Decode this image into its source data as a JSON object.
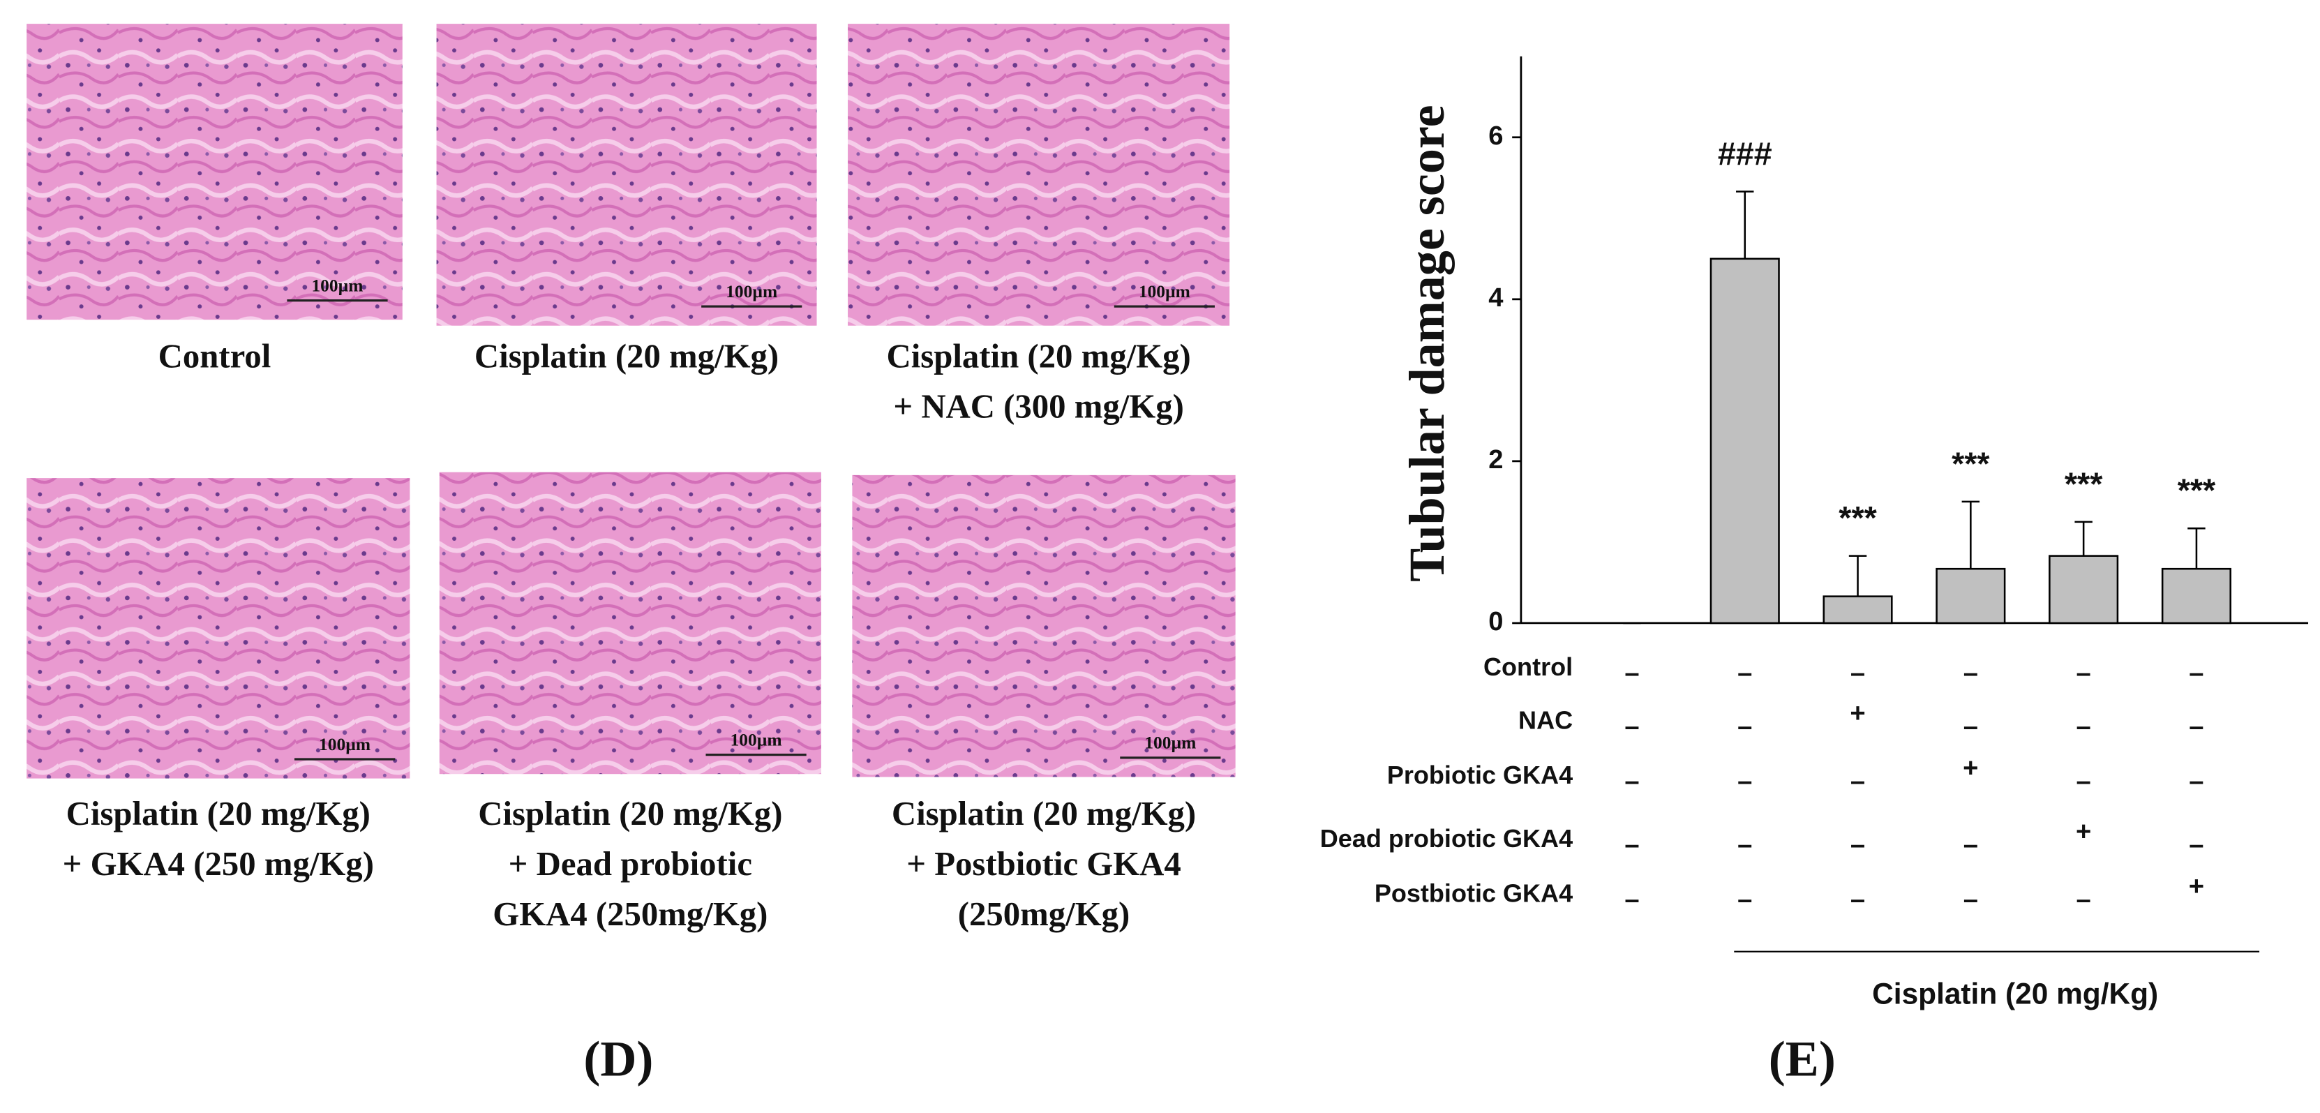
{
  "panel_d": {
    "label": "(D)",
    "images": [
      {
        "caption": [
          "Control"
        ],
        "scale_label": "100µm"
      },
      {
        "caption": [
          "Cisplatin (20 mg/Kg)"
        ],
        "scale_label": "100µm"
      },
      {
        "caption": [
          "Cisplatin (20 mg/Kg)",
          "+ NAC (300 mg/Kg)"
        ],
        "scale_label": "100µm"
      },
      {
        "caption": [
          "Cisplatin (20 mg/Kg)",
          "+ GKA4 (250 mg/Kg)"
        ],
        "scale_label": "100µm"
      },
      {
        "caption": [
          "Cisplatin (20 mg/Kg)",
          "+ Dead probiotic",
          "GKA4 (250mg/Kg)"
        ],
        "scale_label": "100µm"
      },
      {
        "caption": [
          "Cisplatin (20 mg/Kg)",
          "+ Postbiotic GKA4",
          "(250mg/Kg)"
        ],
        "scale_label": "100µm"
      }
    ]
  },
  "chart_data": {
    "type": "bar",
    "panel_label": "(E)",
    "y_label": "Tubular damage score",
    "values": [
      0,
      4.5,
      0.33,
      0.67,
      0.83,
      0.67
    ],
    "errors": [
      0,
      0.83,
      0.5,
      0.83,
      0.42,
      0.5
    ],
    "annotations": [
      null,
      "###",
      "***",
      "***",
      "***",
      "***"
    ],
    "color": "#c0c0c0",
    "ylim": [
      0,
      7
    ],
    "yticks": [
      0,
      2,
      4,
      6
    ],
    "treatments": [
      {
        "name": "Control",
        "signs": [
          "–",
          "–",
          "–",
          "–",
          "–",
          "–"
        ]
      },
      {
        "name": "NAC",
        "signs": [
          "–",
          "–",
          "+",
          "–",
          "–",
          "–"
        ]
      },
      {
        "name": "Probiotic GKA4",
        "signs": [
          "–",
          "–",
          "–",
          "+",
          "–",
          "–"
        ]
      },
      {
        "name": "Dead probiotic GKA4",
        "signs": [
          "–",
          "–",
          "–",
          "–",
          "+",
          "–"
        ]
      },
      {
        "name": "Postbiotic GKA4",
        "signs": [
          "–",
          "–",
          "–",
          "–",
          "–",
          "+"
        ]
      }
    ],
    "group_label": "Cisplatin (20 mg/Kg)"
  }
}
